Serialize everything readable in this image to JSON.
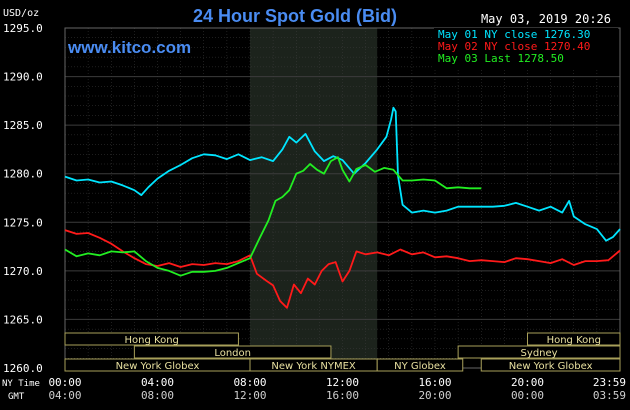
{
  "chart_data": {
    "type": "line",
    "title": "24 Hour Spot Gold (Bid)",
    "watermark": "www.kitco.com",
    "timestamp": "May 03, 2019 20:26",
    "ylabel": "USD/oz",
    "ylim": [
      1260,
      1295
    ],
    "yticks": [
      1295.0,
      1290.0,
      1285.0,
      1280.0,
      1275.0,
      1270.0,
      1265.0,
      1260.0
    ],
    "ytick_labels": [
      "1295.0",
      "1290.0",
      "1285.0",
      "1280.0",
      "1275.0",
      "1270.0",
      "1265.0",
      "1260.0"
    ],
    "xlim": [
      0,
      24
    ],
    "xtick_hours": [
      0,
      4,
      8,
      12,
      16,
      20,
      24
    ],
    "xtick_labels_ny": [
      "00:00",
      "04:00",
      "08:00",
      "12:00",
      "16:00",
      "20:00",
      "23:59"
    ],
    "xtick_labels_gmt": [
      "04:00",
      "08:00",
      "12:00",
      "16:00",
      "20:00",
      "00:00",
      "03:59"
    ],
    "row_label_ny": "NY Time",
    "row_label_gmt": "GMT",
    "highlight_hours": [
      8.0,
      13.5
    ],
    "grid": true,
    "legend_position": "top-right",
    "series": [
      {
        "name": "May 01 NY close 1276.30",
        "color": "#00e5ff",
        "x": [
          0,
          0.5,
          1,
          1.5,
          2,
          2.5,
          3,
          3.3,
          3.6,
          4,
          4.5,
          5,
          5.5,
          6,
          6.5,
          7,
          7.5,
          8,
          8.5,
          9,
          9.4,
          9.7,
          10,
          10.4,
          10.8,
          11.2,
          11.6,
          12,
          12.5,
          13,
          13.5,
          13.9,
          14.1,
          14.2,
          14.3,
          14.4,
          14.6,
          15,
          15.5,
          16,
          16.5,
          17,
          17.5,
          18,
          18.5,
          19,
          19.5,
          20,
          20.5,
          21,
          21.5,
          21.8,
          22,
          22.5,
          23,
          23.4,
          23.7,
          24
        ],
        "values": [
          1279.7,
          1279.3,
          1279.4,
          1279.1,
          1279.2,
          1278.8,
          1278.3,
          1277.8,
          1278.6,
          1279.5,
          1280.3,
          1280.9,
          1281.6,
          1282.0,
          1281.9,
          1281.5,
          1282.0,
          1281.4,
          1281.7,
          1281.3,
          1282.5,
          1283.8,
          1283.2,
          1284.1,
          1282.3,
          1281.3,
          1281.8,
          1281.4,
          1280.0,
          1281.1,
          1282.5,
          1283.8,
          1285.6,
          1286.8,
          1286.4,
          1279.8,
          1276.8,
          1276.0,
          1276.2,
          1276.0,
          1276.2,
          1276.6,
          1276.6,
          1276.6,
          1276.6,
          1276.7,
          1277.0,
          1276.6,
          1276.2,
          1276.6,
          1276.0,
          1277.2,
          1275.6,
          1274.8,
          1274.3,
          1273.1,
          1273.5,
          1274.3
        ]
      },
      {
        "name": "May 02 NY close 1270.40",
        "color": "#ff1a1a",
        "x": [
          0,
          0.5,
          1,
          1.5,
          2,
          2.5,
          3,
          3.5,
          4,
          4.5,
          5,
          5.5,
          6,
          6.5,
          7,
          7.5,
          8,
          8.3,
          8.7,
          9,
          9.3,
          9.6,
          9.9,
          10.2,
          10.5,
          10.8,
          11.1,
          11.4,
          11.7,
          12,
          12.3,
          12.6,
          13,
          13.5,
          14,
          14.5,
          15,
          15.5,
          16,
          16.5,
          17,
          17.5,
          18,
          18.5,
          19,
          19.5,
          20,
          20.5,
          21,
          21.5,
          22,
          22.5,
          23,
          23.5,
          24
        ],
        "values": [
          1274.2,
          1273.8,
          1273.9,
          1273.4,
          1272.8,
          1272.0,
          1271.3,
          1270.7,
          1270.5,
          1270.8,
          1270.4,
          1270.7,
          1270.6,
          1270.8,
          1270.7,
          1271.0,
          1271.6,
          1269.7,
          1269.0,
          1268.5,
          1266.9,
          1266.2,
          1268.6,
          1267.7,
          1269.2,
          1268.6,
          1270.0,
          1270.7,
          1270.9,
          1268.9,
          1270.0,
          1272.0,
          1271.7,
          1271.9,
          1271.6,
          1272.2,
          1271.7,
          1271.9,
          1271.4,
          1271.5,
          1271.3,
          1271.0,
          1271.1,
          1271.0,
          1270.9,
          1271.3,
          1271.2,
          1271.0,
          1270.8,
          1271.2,
          1270.6,
          1271.0,
          1271.0,
          1271.1,
          1272.1
        ]
      },
      {
        "name": "May 03 Last 1278.50",
        "color": "#22ee22",
        "x": [
          0,
          0.5,
          1,
          1.5,
          2,
          2.5,
          3,
          3.5,
          4,
          4.5,
          5,
          5.5,
          6,
          6.5,
          7,
          7.5,
          8,
          8.4,
          8.8,
          9.1,
          9.4,
          9.7,
          10,
          10.3,
          10.6,
          10.9,
          11.2,
          11.5,
          11.8,
          12,
          12.3,
          12.6,
          13,
          13.4,
          13.8,
          14.2,
          14.6,
          15,
          15.5,
          16,
          16.5,
          17,
          17.5,
          18
        ],
        "values": [
          1272.2,
          1271.5,
          1271.8,
          1271.6,
          1272.0,
          1271.9,
          1272.0,
          1271.0,
          1270.3,
          1270.0,
          1269.5,
          1269.9,
          1269.9,
          1270.0,
          1270.3,
          1270.8,
          1271.3,
          1273.3,
          1275.2,
          1277.2,
          1277.6,
          1278.3,
          1280.0,
          1280.3,
          1281.0,
          1280.4,
          1280.0,
          1281.3,
          1281.7,
          1280.4,
          1279.2,
          1280.5,
          1280.9,
          1280.2,
          1280.6,
          1280.4,
          1279.3,
          1279.3,
          1279.4,
          1279.3,
          1278.5,
          1278.6,
          1278.5,
          1278.5
        ]
      }
    ],
    "sessions_top": [
      {
        "name": "Hong Kong",
        "start": 0.0,
        "end": 7.5
      },
      {
        "name": "Hong Kong",
        "start": 20.0,
        "end": 24.0
      }
    ],
    "sessions_mid": [
      {
        "name": "London",
        "start": 3.0,
        "end": 11.5
      },
      {
        "name": "Sydney",
        "start": 17.0,
        "end": 24.0
      }
    ],
    "sessions_bot": [
      {
        "name": "New York Globex",
        "start": 0.0,
        "end": 8.0
      },
      {
        "name": "New York NYMEX",
        "start": 8.0,
        "end": 13.5
      },
      {
        "name": "NY Globex",
        "start": 13.5,
        "end": 17.2
      },
      {
        "name": "New York Globex",
        "start": 18.0,
        "end": 24.0
      }
    ],
    "colors": {
      "background": "#000000",
      "plot_background": "#000000",
      "highlight": "#1c231c",
      "grid": "#3c3c3c",
      "title": "#4a8cf2",
      "text": "#ffffff",
      "session_fill": "#000000",
      "session_border": "#a8a05a",
      "session_text": "#e8e0a0"
    }
  }
}
